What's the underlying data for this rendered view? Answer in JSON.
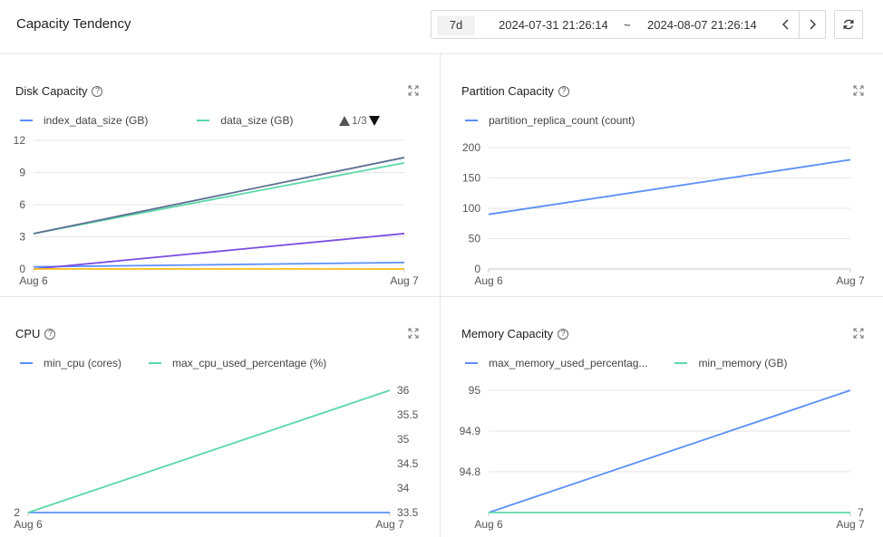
{
  "header": {
    "title": "Capacity Tendency",
    "range_chip": "7d",
    "start": "2024-07-31 21:26:14",
    "separator": "~",
    "end": "2024-08-07 21:26:14"
  },
  "icons": {
    "prev": "chevron-left-icon",
    "next": "chevron-right-icon",
    "refresh": "refresh-icon",
    "help": "question-circle-icon",
    "expand": "expand-icon"
  },
  "panels": {
    "disk": {
      "title": "Disk Capacity",
      "legend": [
        {
          "label": "index_data_size (GB)",
          "color": "#5b8ff9"
        },
        {
          "label": "data_size (GB)",
          "color": "#5ad8a6"
        }
      ],
      "pager": "1/3"
    },
    "partition": {
      "title": "Partition Capacity",
      "legend": [
        {
          "label": "partition_replica_count (count)",
          "color": "#5b8ff9"
        }
      ]
    },
    "cpu": {
      "title": "CPU",
      "legend": [
        {
          "label": "min_cpu (cores)",
          "color": "#5b8ff9"
        },
        {
          "label": "max_cpu_used_percentage (%)",
          "color": "#5ad8a6"
        }
      ]
    },
    "memory": {
      "title": "Memory Capacity",
      "legend": [
        {
          "label": "max_memory_used_percentag...",
          "color": "#5b8ff9"
        },
        {
          "label": "min_memory (GB)",
          "color": "#5ad8a6"
        }
      ]
    }
  },
  "chart_data": [
    {
      "type": "line",
      "title": "Disk Capacity",
      "x": [
        "Aug 6",
        "Aug 7"
      ],
      "yticks": [
        0,
        3,
        6,
        9,
        12
      ],
      "ylim": [
        0,
        12
      ],
      "series": [
        {
          "name": "index_data_size (GB)",
          "color": "#5b8ff9",
          "values": [
            0.2,
            0.6
          ]
        },
        {
          "name": "data_size (GB)",
          "color": "#5ad8a6",
          "values": [
            3.3,
            9.9
          ]
        },
        {
          "color": "#5d7092",
          "values": [
            3.3,
            10.4
          ]
        },
        {
          "color": "#7b4fe0",
          "values": [
            0.0,
            3.3
          ]
        },
        {
          "color": "#f6bd16",
          "values": [
            0.0,
            0.0
          ]
        }
      ]
    },
    {
      "type": "line",
      "title": "Partition Capacity",
      "x": [
        "Aug 6",
        "Aug 7"
      ],
      "yticks": [
        0,
        50,
        100,
        150,
        200
      ],
      "ylim": [
        0,
        200
      ],
      "series": [
        {
          "name": "partition_replica_count (count)",
          "color": "#5b8ff9",
          "values": [
            90,
            180
          ]
        }
      ]
    },
    {
      "type": "line",
      "title": "CPU",
      "x": [
        "Aug 6",
        "Aug 7"
      ],
      "left_ticks": [
        2
      ],
      "right_ticks": [
        "36",
        "35.5",
        "35",
        "34.5",
        "34",
        "33.5"
      ],
      "right_ylim": [
        33.5,
        36
      ],
      "series": [
        {
          "name": "min_cpu (cores)",
          "color": "#5b8ff9",
          "axis": "left",
          "values": [
            2,
            2
          ]
        },
        {
          "name": "max_cpu_used_percentage (%)",
          "color": "#5ad8a6",
          "axis": "right",
          "values": [
            33.5,
            36
          ]
        }
      ]
    },
    {
      "type": "line",
      "title": "Memory Capacity",
      "x": [
        "Aug 6",
        "Aug 7"
      ],
      "left_ticks": [
        "95",
        "94.9",
        "94.8"
      ],
      "left_ylim": [
        94.7,
        95.0
      ],
      "right_ticks": [
        7
      ],
      "series": [
        {
          "name": "max_memory_used_percentag...",
          "color": "#5b8ff9",
          "axis": "left",
          "values": [
            94.7,
            95.0
          ]
        },
        {
          "name": "min_memory (GB)",
          "color": "#5ad8a6",
          "axis": "right",
          "values": [
            7,
            7
          ]
        }
      ]
    }
  ]
}
